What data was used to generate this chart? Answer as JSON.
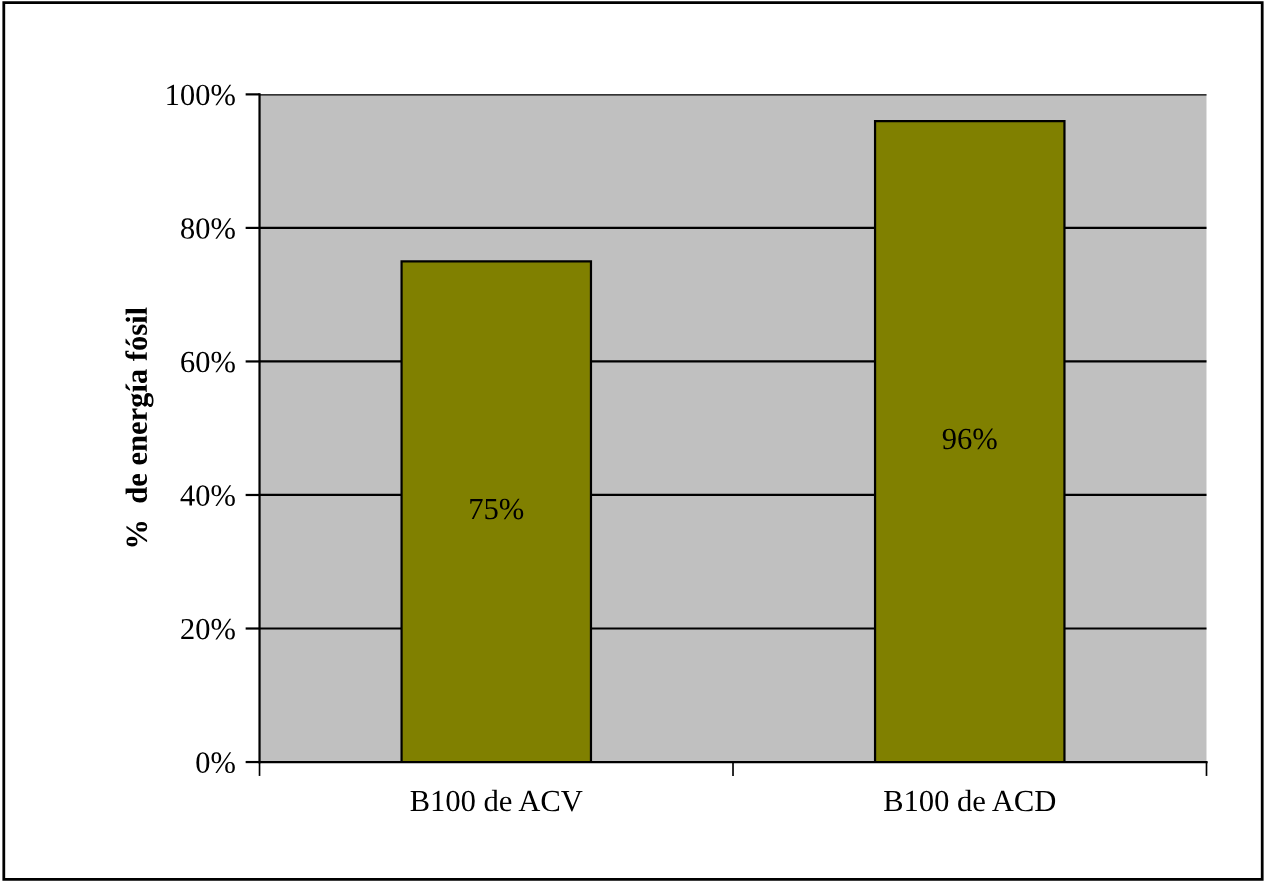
{
  "chart_data": {
    "type": "bar",
    "ylabel": "%  de energía fósil",
    "categories": [
      "B100 de ACV",
      "B100 de ACD"
    ],
    "values": [
      75,
      96
    ],
    "color": "#808000",
    "data_labels": true,
    "value_labels": [
      "75%",
      "96%"
    ],
    "ylim": [
      0,
      100
    ],
    "yticks": [
      {
        "value": 0,
        "label": "0%"
      },
      {
        "value": 20,
        "label": "20%"
      },
      {
        "value": 40,
        "label": "40%"
      },
      {
        "value": 60,
        "label": "60%"
      },
      {
        "value": 80,
        "label": "80%"
      },
      {
        "value": 100,
        "label": "100%"
      }
    ],
    "grid": "y",
    "legend": false
  }
}
